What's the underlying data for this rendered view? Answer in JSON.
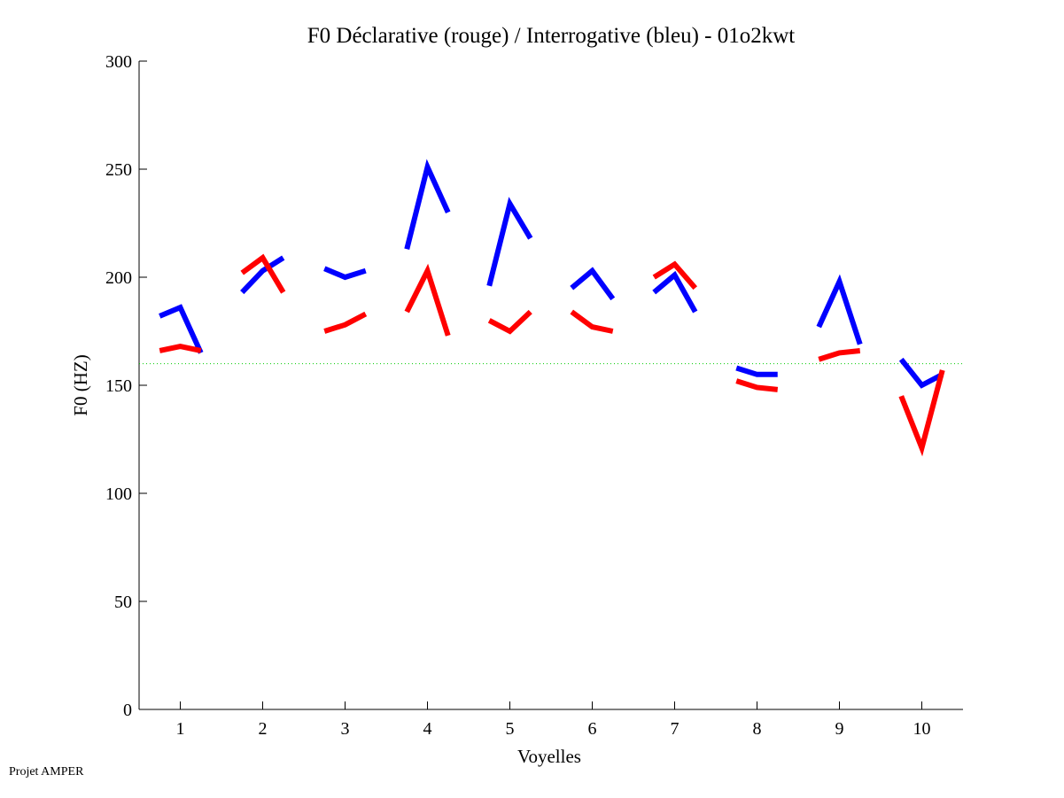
{
  "chart_data": {
    "type": "line",
    "title": "F0 Déclarative (rouge) / Interrogative (bleu) - 01o2kwt",
    "xlabel": "Voyelles",
    "ylabel": "F0 (HZ)",
    "xlim": [
      0.5,
      10.5
    ],
    "ylim": [
      0,
      300
    ],
    "xticks": [
      "1",
      "2",
      "3",
      "4",
      "5",
      "6",
      "7",
      "8",
      "9",
      "10"
    ],
    "yticks": [
      "0",
      "50",
      "100",
      "150",
      "200",
      "250",
      "300"
    ],
    "reference_line": {
      "y": 160,
      "color": "#00cc00",
      "style": "dotted"
    },
    "point_offsets": [
      -0.25,
      0,
      0.25
    ],
    "series": [
      {
        "name": "Interrogative (bleu)",
        "color": "#0000ff",
        "segments": [
          [
            182,
            186,
            165
          ],
          [
            193,
            203,
            209
          ],
          [
            204,
            200,
            203
          ],
          [
            213,
            251,
            230
          ],
          [
            196,
            234,
            218
          ],
          [
            195,
            203,
            190
          ],
          [
            193,
            201,
            184
          ],
          [
            158,
            155,
            155
          ],
          [
            177,
            198,
            169
          ],
          [
            162,
            150,
            155
          ]
        ]
      },
      {
        "name": "Déclarative (rouge)",
        "color": "#ff0000",
        "segments": [
          [
            166,
            168,
            166
          ],
          [
            202,
            209,
            193
          ],
          [
            175,
            178,
            183
          ],
          [
            184,
            203,
            173
          ],
          [
            180,
            175,
            184
          ],
          [
            184,
            177,
            175
          ],
          [
            200,
            206,
            195
          ],
          [
            152,
            149,
            148
          ],
          [
            162,
            165,
            166
          ],
          [
            145,
            121,
            157
          ]
        ]
      }
    ]
  },
  "footer": {
    "credit": "Projet AMPER"
  }
}
